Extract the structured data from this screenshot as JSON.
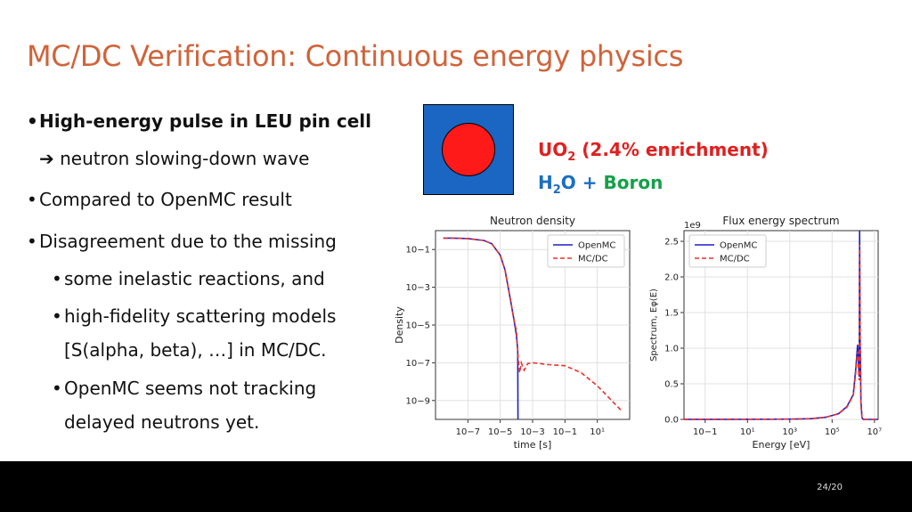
{
  "slide": {
    "title": "MC/DC Verification: Continuous energy physics",
    "page": "24/20"
  },
  "bullets": {
    "b1": "High-energy pulse in LEU pin cell",
    "b1_sub": "➔ neutron slowing-down wave",
    "b2": "Compared to OpenMC result",
    "b3": "Disagreement due to the missing",
    "b3a": "some inelastic reactions, and",
    "b3b_1": "high-fidelity scattering models",
    "b3b_2": "[S(alpha, beta), …] in MC/DC.",
    "b3c_1": "OpenMC seems not tracking",
    "b3c_2": "delayed neutrons yet."
  },
  "materials": {
    "fuel_a": "UO",
    "fuel_sub": "2",
    "fuel_b": " (2.4% enrichment)",
    "mod_a": "H",
    "mod_sub": "2",
    "mod_b": "O + ",
    "mod_c": "Boron",
    "fuel_color": "#e02020",
    "water_color": "#1a66c2"
  },
  "chart_data": [
    {
      "type": "line",
      "title": "Neutron density",
      "xlabel": "time [s]",
      "ylabel": "Density",
      "xscale": "log",
      "yscale": "log",
      "xlim": [
        1e-09,
        1000.0
      ],
      "ylim": [
        1e-10,
        1
      ],
      "xticks": [
        "10−7",
        "10−5",
        "10−3",
        "10−1",
        "10¹"
      ],
      "yticks": [
        "10−1",
        "10−3",
        "10−5",
        "10−7",
        "10−9"
      ],
      "legend": "top-right",
      "grid": true,
      "series": [
        {
          "name": "OpenMC",
          "color": "#1f1fcc",
          "style": "solid",
          "x": [
            3e-09,
            1e-08,
            1e-07,
            1e-06,
            3e-06,
            1e-05,
            2e-05,
            4e-05,
            7e-05,
            0.0001,
            0.00012,
            0.000125
          ],
          "y": [
            0.4,
            0.4,
            0.38,
            0.3,
            0.2,
            0.05,
            0.008,
            0.0003,
            2e-05,
            3e-06,
            5e-07,
            1e-10
          ]
        },
        {
          "name": "MC/DC",
          "color": "#e8322a",
          "style": "dashed",
          "x": [
            3e-09,
            1e-08,
            1e-07,
            1e-06,
            3e-06,
            1e-05,
            2e-05,
            4e-05,
            7e-05,
            0.0001,
            0.00013,
            0.00016,
            0.0002,
            0.0003,
            0.0005,
            0.001,
            0.01,
            0.1,
            1,
            10,
            100,
            300
          ],
          "y": [
            0.4,
            0.4,
            0.38,
            0.3,
            0.2,
            0.05,
            0.008,
            0.0003,
            2e-05,
            5e-06,
            1.5e-07,
            3e-08,
            1e-07,
            4e-08,
            9e-08,
            1e-07,
            8e-08,
            7e-08,
            3e-08,
            6e-09,
            8e-10,
            3e-10
          ]
        }
      ]
    },
    {
      "type": "line",
      "title": "Flux energy spectrum",
      "xlabel": "Energy [eV]",
      "ylabel": "Spectrum, Eφ(E)",
      "offset_label": "1e9",
      "xscale": "log",
      "xlim": [
        0.01,
        15000000.0
      ],
      "ylim": [
        0,
        2.5
      ],
      "xticks": [
        "10−1",
        "10¹",
        "10³",
        "10⁵",
        "10⁷"
      ],
      "yticks": [
        "0.0",
        "0.5",
        "1.0",
        "1.5",
        "2.0",
        "2.5"
      ],
      "legend": "top-left",
      "grid": true,
      "series": [
        {
          "name": "OpenMC",
          "color": "#1f1fcc",
          "style": "solid",
          "x": [
            0.01,
            1,
            100,
            1000,
            10000,
            50000,
            200000,
            500000,
            1000000,
            1300000,
            1600000,
            1900000,
            2000000,
            2100000,
            2300000,
            2600000,
            3000000,
            15000000
          ],
          "y": [
            0.001,
            0.001,
            0.002,
            0.004,
            0.01,
            0.03,
            0.08,
            0.18,
            0.35,
            0.7,
            1.05,
            0.6,
            2.65,
            1.2,
            0.25,
            0.02,
            0.0,
            0.0
          ]
        },
        {
          "name": "MC/DC",
          "color": "#e8322a",
          "style": "dashed",
          "x": [
            0.01,
            1,
            100,
            1000,
            10000,
            50000,
            200000,
            500000,
            1000000,
            1300000,
            1600000,
            1900000,
            2000000,
            2100000,
            2300000,
            2600000,
            3000000,
            15000000
          ],
          "y": [
            0.001,
            0.001,
            0.002,
            0.004,
            0.01,
            0.03,
            0.08,
            0.17,
            0.34,
            0.65,
            0.95,
            0.55,
            2.45,
            1.1,
            0.2,
            0.02,
            0.0,
            0.0
          ]
        }
      ]
    }
  ]
}
